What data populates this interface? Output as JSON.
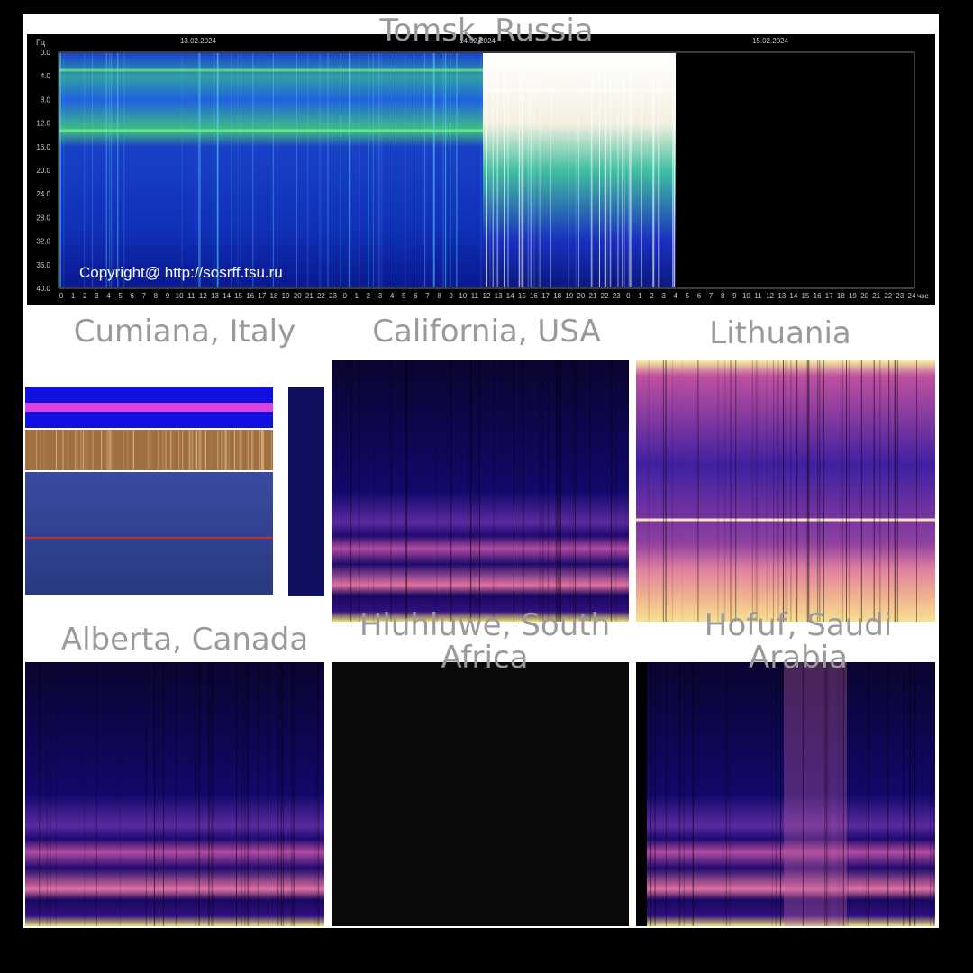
{
  "panels": {
    "tomsk": {
      "title": "Tomsk, Russia",
      "unit": "Гц",
      "dates": [
        "13.02.2024",
        "14.02.2024",
        "15.02.2024"
      ],
      "yticks": [
        "0.0",
        "4.0",
        "8.0",
        "12.0",
        "16.0",
        "20.0",
        "24.0",
        "28.0",
        "32.0",
        "36.0",
        "40.0"
      ],
      "hours": [
        0,
        1,
        2,
        3,
        4,
        5,
        6,
        7,
        8,
        9,
        10,
        11,
        12,
        13,
        14,
        15,
        16,
        17,
        18,
        19,
        20,
        21,
        22,
        23,
        0,
        1,
        2,
        3,
        4,
        5,
        6,
        7,
        8,
        9,
        10,
        11,
        12,
        13,
        14,
        15,
        16,
        17,
        18,
        19,
        20,
        21,
        22,
        23,
        0,
        1,
        2,
        3,
        4,
        5,
        6,
        7,
        8,
        9,
        10,
        11,
        12,
        13,
        14,
        15,
        16,
        17,
        18,
        19,
        20,
        21,
        22,
        23,
        24
      ],
      "hour_unit": "час",
      "copyright": "Copyright@ http://sosrff.tsu.ru"
    },
    "cumiana": {
      "title": "Cumiana, Italy"
    },
    "california": {
      "title": "California, USA"
    },
    "lithuania": {
      "title": "Lithuania"
    },
    "alberta": {
      "title": "Alberta, Canada"
    },
    "hluhluwe": {
      "title": "Hluhluwe, South Africa"
    },
    "hofuf": {
      "title": "Hofuf, Saudi Arabia"
    }
  }
}
